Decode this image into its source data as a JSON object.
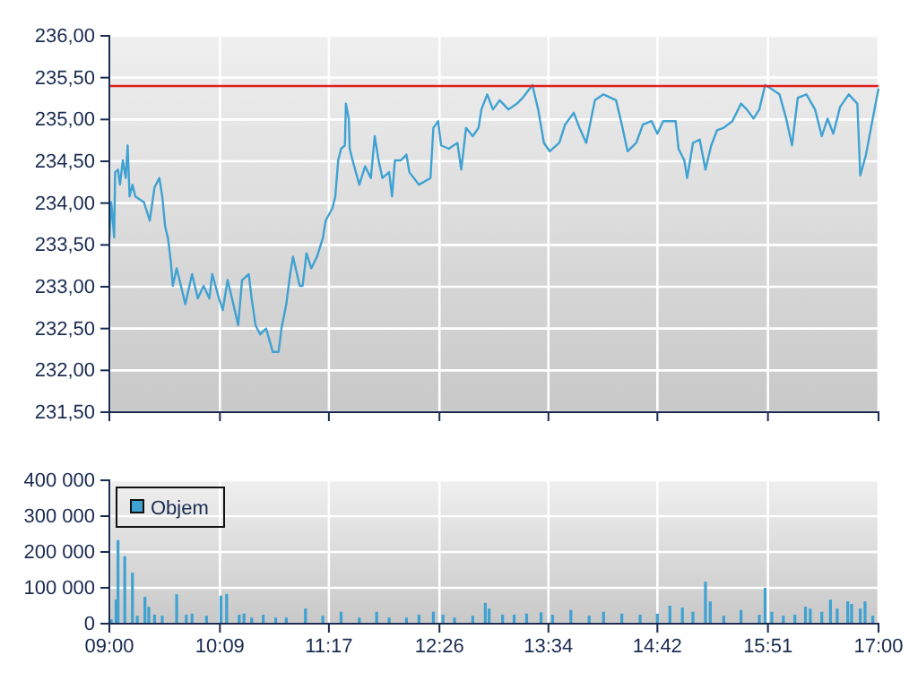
{
  "chart_data": [
    {
      "type": "line",
      "tick_labels": "y",
      "grid": true,
      "xlim": [
        9,
        17
      ],
      "xticks": [
        {
          "value": 9,
          "label": null
        },
        {
          "value": 10.15,
          "label": null
        },
        {
          "value": 11.2833,
          "label": null
        },
        {
          "value": 12.4333,
          "label": null
        },
        {
          "value": 13.5667,
          "label": null
        },
        {
          "value": 14.7,
          "label": null
        },
        {
          "value": 15.85,
          "label": null
        },
        {
          "value": 17,
          "label": null
        }
      ],
      "ylim": [
        231.5,
        236
      ],
      "yticks": [
        {
          "value": 231.5,
          "label": "231,50"
        },
        {
          "value": 232,
          "label": "232,00"
        },
        {
          "value": 232.5,
          "label": "232,50"
        },
        {
          "value": 233,
          "label": "233,00"
        },
        {
          "value": 233.5,
          "label": "233,50"
        },
        {
          "value": 234,
          "label": "234,00"
        },
        {
          "value": 234.5,
          "label": "234,50"
        },
        {
          "value": 235,
          "label": "235,00"
        },
        {
          "value": 235.5,
          "label": "235,50"
        },
        {
          "value": 236,
          "label": "236,00"
        }
      ],
      "ref_lines": [
        {
          "axis": "y",
          "value": 235.4,
          "label": null,
          "color": "#e02020"
        }
      ],
      "series": [
        {
          "color": "#3fa2d2",
          "x": [
            9.0,
            9.02,
            9.05,
            9.06,
            9.09,
            9.11,
            9.14,
            9.17,
            9.19,
            9.21,
            9.24,
            9.27,
            9.36,
            9.42,
            9.47,
            9.52,
            9.55,
            9.58,
            9.61,
            9.64,
            9.66,
            9.7,
            9.73,
            9.79,
            9.86,
            9.92,
            9.98,
            10.04,
            10.07,
            10.14,
            10.18,
            10.23,
            10.29,
            10.34,
            10.38,
            10.45,
            10.48,
            10.52,
            10.57,
            10.63,
            10.7,
            10.76,
            10.79,
            10.84,
            10.88,
            10.91,
            10.98,
            11.01,
            11.05,
            11.1,
            11.16,
            11.22,
            11.25,
            11.32,
            11.35,
            11.38,
            11.41,
            11.45,
            11.46,
            11.49,
            11.5,
            11.53,
            11.6,
            11.66,
            11.72,
            11.76,
            11.8,
            11.84,
            11.91,
            11.94,
            11.97,
            12.03,
            12.09,
            12.12,
            12.22,
            12.34,
            12.37,
            12.42,
            12.45,
            12.53,
            12.62,
            12.66,
            12.71,
            12.78,
            12.84,
            12.87,
            12.93,
            12.99,
            13.06,
            13.15,
            13.24,
            13.3,
            13.4,
            13.46,
            13.52,
            13.58,
            13.68,
            13.74,
            13.83,
            13.89,
            13.96,
            14.05,
            14.14,
            14.27,
            14.33,
            14.39,
            14.48,
            14.55,
            14.64,
            14.7,
            14.76,
            14.89,
            14.92,
            14.98,
            15.01,
            15.07,
            15.14,
            15.2,
            15.26,
            15.32,
            15.39,
            15.48,
            15.57,
            15.63,
            15.7,
            15.76,
            15.82,
            15.88,
            15.97,
            16.04,
            16.1,
            16.16,
            16.25,
            16.34,
            16.41,
            16.47,
            16.53,
            16.6,
            16.69,
            16.78,
            16.81,
            16.87,
            16.94,
            17.0
          ],
          "values": [
            233.58,
            234.01,
            233.59,
            234.37,
            234.4,
            234.22,
            234.51,
            234.3,
            234.69,
            234.08,
            234.22,
            234.08,
            234.01,
            233.79,
            234.19,
            234.3,
            234.08,
            233.72,
            233.58,
            233.29,
            233.01,
            233.22,
            233.08,
            232.79,
            233.15,
            232.86,
            233.01,
            232.86,
            233.15,
            232.86,
            232.72,
            233.08,
            232.79,
            232.54,
            233.08,
            233.15,
            232.86,
            232.54,
            232.43,
            232.5,
            232.22,
            232.22,
            232.5,
            232.79,
            233.15,
            233.36,
            233.01,
            233.01,
            233.4,
            233.22,
            233.36,
            233.58,
            233.79,
            233.94,
            234.08,
            234.51,
            234.65,
            234.69,
            235.19,
            235.01,
            234.65,
            234.51,
            234.22,
            234.44,
            234.3,
            234.8,
            234.51,
            234.3,
            234.37,
            234.08,
            234.51,
            234.51,
            234.58,
            234.37,
            234.22,
            234.3,
            234.9,
            234.98,
            234.69,
            234.65,
            234.72,
            234.4,
            234.9,
            234.8,
            234.9,
            235.12,
            235.3,
            235.12,
            235.23,
            235.12,
            235.19,
            235.26,
            235.41,
            235.12,
            234.72,
            234.62,
            234.72,
            234.94,
            235.08,
            234.9,
            234.72,
            235.23,
            235.3,
            235.23,
            234.94,
            234.62,
            234.72,
            234.94,
            234.98,
            234.83,
            234.98,
            234.98,
            234.65,
            234.51,
            234.3,
            234.72,
            234.76,
            234.4,
            234.69,
            234.87,
            234.9,
            234.98,
            235.19,
            235.12,
            235.01,
            235.12,
            235.41,
            235.37,
            235.3,
            235.01,
            234.69,
            235.26,
            235.3,
            235.12,
            234.8,
            235.01,
            234.83,
            235.15,
            235.3,
            235.19,
            234.33,
            234.58,
            235.01,
            235.37
          ]
        }
      ]
    },
    {
      "type": "bar",
      "grid": true,
      "legend": "top left",
      "xlim": [
        9,
        17
      ],
      "xticks": [
        {
          "value": 9,
          "label": "09:00"
        },
        {
          "value": 10.15,
          "label": "10:09"
        },
        {
          "value": 11.2833,
          "label": "11:17"
        },
        {
          "value": 12.4333,
          "label": "12:26"
        },
        {
          "value": 13.5667,
          "label": "13:34"
        },
        {
          "value": 14.7,
          "label": "14:42"
        },
        {
          "value": 15.85,
          "label": "15:51"
        },
        {
          "value": 17,
          "label": "17:00"
        }
      ],
      "ylim": [
        0,
        400000
      ],
      "yticks": [
        0,
        {
          "value": 100000,
          "label": "100 000"
        },
        {
          "value": 200000,
          "label": "200 000"
        },
        {
          "value": 300000,
          "label": "300 000"
        },
        {
          "value": 400000,
          "label": "400 000"
        }
      ],
      "series": [
        {
          "name": "Objem",
          "color": "#3fa2d2",
          "x": [
            9.02,
            9.07,
            9.09,
            9.16,
            9.24,
            9.29,
            9.37,
            9.41,
            9.47,
            9.55,
            9.7,
            9.8,
            9.86,
            10.01,
            10.16,
            10.22,
            10.35,
            10.4,
            10.48,
            10.6,
            10.73,
            10.84,
            11.04,
            11.22,
            11.41,
            11.6,
            11.78,
            11.91,
            12.09,
            12.22,
            12.37,
            12.47,
            12.59,
            12.78,
            12.91,
            12.95,
            13.09,
            13.21,
            13.34,
            13.49,
            13.61,
            13.8,
            13.99,
            14.14,
            14.33,
            14.52,
            14.7,
            14.83,
            14.96,
            15.07,
            15.2,
            15.25,
            15.39,
            15.57,
            15.76,
            15.82,
            15.89,
            16.01,
            16.13,
            16.24,
            16.29,
            16.41,
            16.5,
            16.57,
            16.68,
            16.72,
            16.81,
            16.86,
            16.94
          ],
          "values": [
            12000,
            67000,
            233000,
            188000,
            142000,
            22000,
            75000,
            47000,
            25000,
            22000,
            82000,
            25000,
            28000,
            22000,
            78000,
            83000,
            25000,
            28000,
            17000,
            25000,
            17000,
            17000,
            42000,
            22000,
            33000,
            17000,
            33000,
            17000,
            17000,
            25000,
            33000,
            25000,
            17000,
            22000,
            58000,
            42000,
            25000,
            25000,
            28000,
            32000,
            25000,
            38000,
            22000,
            33000,
            28000,
            25000,
            28000,
            50000,
            45000,
            33000,
            117000,
            62000,
            22000,
            38000,
            25000,
            100000,
            33000,
            22000,
            25000,
            47000,
            42000,
            33000,
            67000,
            42000,
            62000,
            55000,
            42000,
            62000,
            22000
          ]
        }
      ]
    }
  ]
}
